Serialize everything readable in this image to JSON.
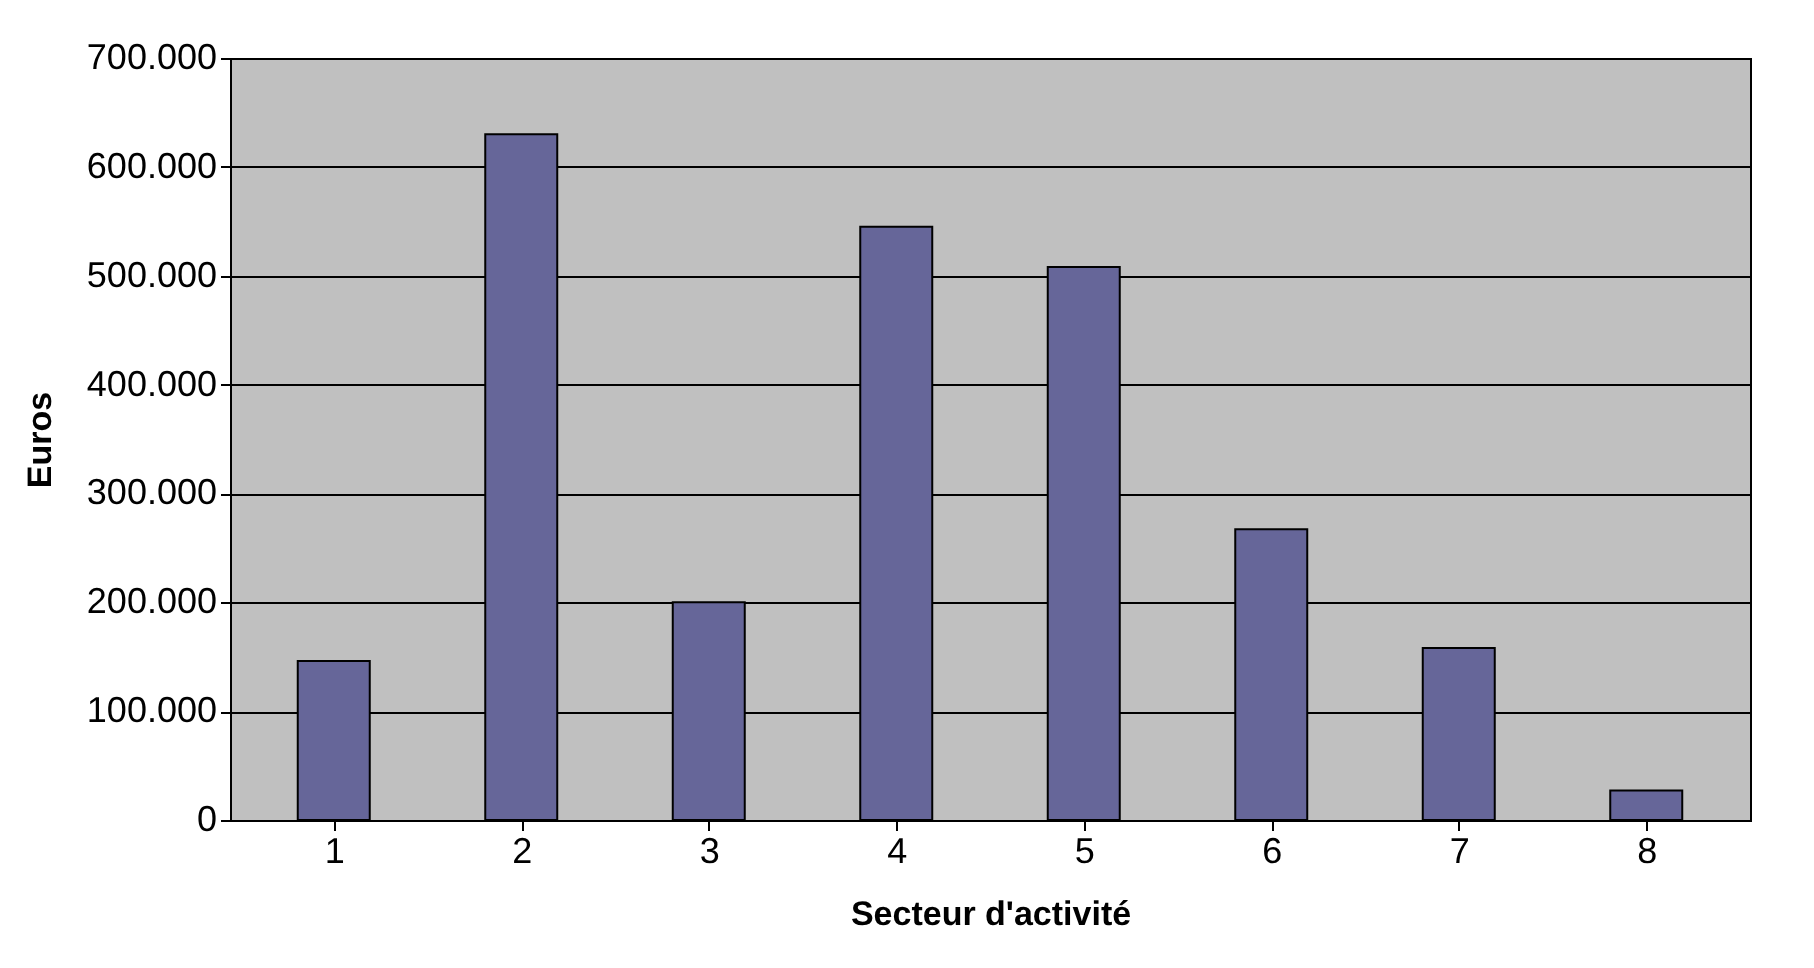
{
  "chart_data": {
    "type": "bar",
    "xlabel": "Secteur d'activité",
    "ylabel": "Euros",
    "categories": [
      "1",
      "2",
      "3",
      "4",
      "5",
      "6",
      "7",
      "8"
    ],
    "values": [
      146000,
      630000,
      200000,
      545000,
      508000,
      267000,
      158000,
      27000
    ],
    "color": "#666699",
    "ylim": [
      0,
      700000
    ],
    "yticks": [
      0,
      {
        "value": 100000,
        "label": "100.000"
      },
      {
        "value": 200000,
        "label": "200.000"
      },
      {
        "value": 300000,
        "label": "300.000"
      },
      {
        "value": 400000,
        "label": "400.000"
      },
      {
        "value": 500000,
        "label": "500.000"
      },
      {
        "value": 600000,
        "label": "600.000"
      },
      {
        "value": 700000,
        "label": "700.000"
      }
    ],
    "grid": "y"
  }
}
